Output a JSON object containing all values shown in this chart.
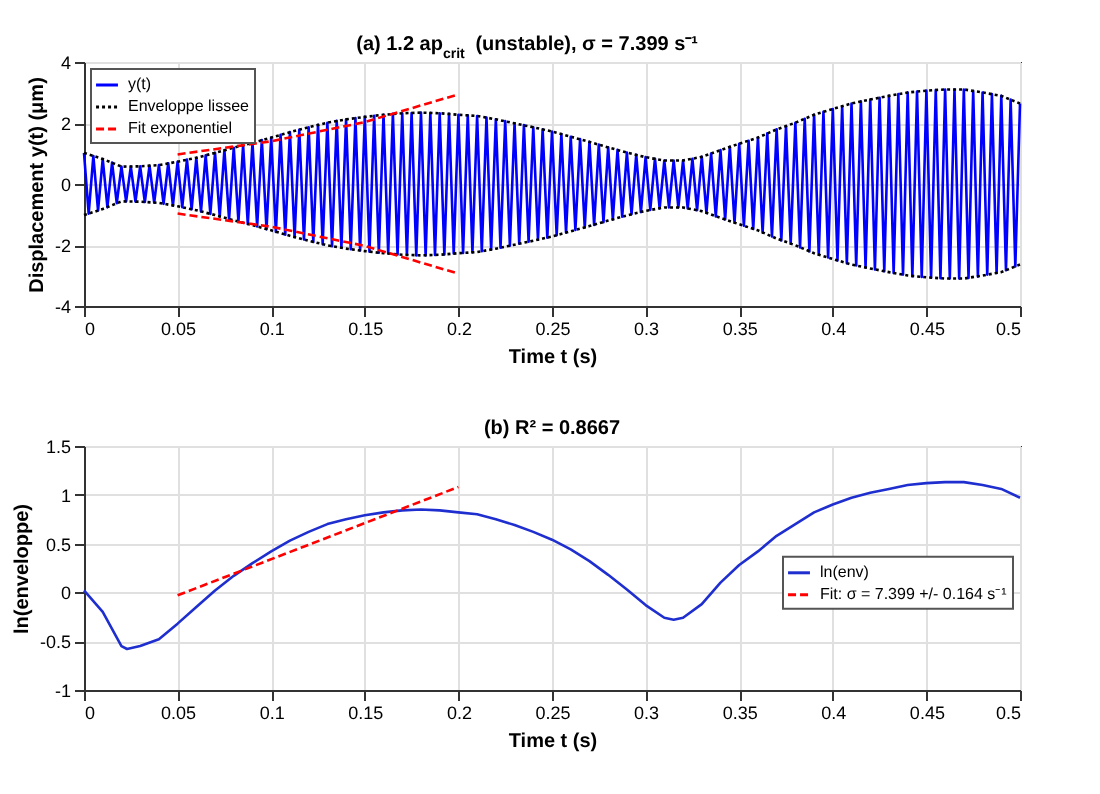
{
  "chart_data": [
    {
      "type": "line",
      "title": "(a) 1.2 ap$_{crit}$ (unstable), σ = 7.399 s⁻¹",
      "xlabel": "Time t (s)",
      "ylabel": "Displacement y(t) (μm)",
      "xlim": [
        0,
        0.5
      ],
      "xticks": [
        0,
        0.05,
        0.1,
        0.15,
        0.2,
        0.25,
        0.3,
        0.35,
        0.4,
        0.45,
        0.5
      ],
      "ylim": [
        -4,
        4
      ],
      "yticks": [
        -4,
        -2,
        0,
        2,
        4
      ],
      "grid": true,
      "legend": "top left",
      "series": [
        {
          "name": "y(t)",
          "color": "#0000ff",
          "line_style": "solid",
          "x": [
            0,
            0.0025,
            0.005,
            0.0075,
            0.01,
            0.0125,
            0.015,
            0.0175,
            0.02,
            0.0225,
            0.025,
            0.0275,
            0.03,
            0.0325,
            0.035,
            0.0375,
            0.04,
            0.0425,
            0.045,
            0.0475,
            0.05,
            0.0525,
            0.055,
            0.0575,
            0.06,
            0.0625,
            0.065,
            0.0675,
            0.07,
            0.0725,
            0.075,
            0.0775,
            0.08,
            0.0825,
            0.085,
            0.0875,
            0.09,
            0.0925,
            0.095,
            0.0975,
            0.1,
            0.1025,
            0.105,
            0.1075,
            0.11,
            0.1125,
            0.115,
            0.1175,
            0.12,
            0.1225,
            0.125,
            0.1275,
            0.13,
            0.1325,
            0.135,
            0.1375,
            0.14,
            0.1425,
            0.145,
            0.1475,
            0.15,
            0.1525,
            0.155,
            0.1575,
            0.16,
            0.1625,
            0.165,
            0.1675,
            0.17,
            0.1725,
            0.175,
            0.1775,
            0.18,
            0.1825,
            0.185,
            0.1875,
            0.19,
            0.1925,
            0.195,
            0.1975,
            0.2,
            0.2025,
            0.205,
            0.2075,
            0.21,
            0.2125,
            0.215,
            0.2175,
            0.22,
            0.2225,
            0.225,
            0.2275,
            0.23,
            0.2325,
            0.235,
            0.2375,
            0.24,
            0.2425,
            0.245,
            0.2475,
            0.25,
            0.2525,
            0.255,
            0.2575,
            0.26,
            0.2625,
            0.265,
            0.2675,
            0.27,
            0.2725,
            0.275,
            0.2775,
            0.28,
            0.2825,
            0.285,
            0.2875,
            0.29,
            0.2925,
            0.295,
            0.2975,
            0.3,
            0.3025,
            0.305,
            0.3075,
            0.31,
            0.3125,
            0.315,
            0.3175,
            0.32,
            0.3225,
            0.325,
            0.3275,
            0.33,
            0.3325,
            0.335,
            0.3375,
            0.34,
            0.3425,
            0.345,
            0.3475,
            0.35,
            0.3525,
            0.355,
            0.3575,
            0.36,
            0.3625,
            0.365,
            0.3675,
            0.37,
            0.3725,
            0.375,
            0.3775,
            0.38,
            0.3825,
            0.385,
            0.3875,
            0.39,
            0.3925,
            0.395,
            0.3975,
            0.4,
            0.4025,
            0.405,
            0.4075,
            0.41,
            0.4125,
            0.415,
            0.4175,
            0.42,
            0.4225,
            0.425,
            0.4275,
            0.43,
            0.4325,
            0.435,
            0.4375,
            0.44,
            0.4425,
            0.445,
            0.4475,
            0.45,
            0.4525,
            0.455,
            0.4575,
            0.46,
            0.4625,
            0.465,
            0.4675,
            0.47,
            0.4725,
            0.475,
            0.4775,
            0.48,
            0.4825,
            0.485,
            0.4875,
            0.49,
            0.4925,
            0.495,
            0.4975,
            0.5
          ],
          "values": [
            1.02,
            -0.97,
            0.92,
            -0.87,
            0.82,
            -0.76,
            0.7,
            -0.63,
            0.57,
            -0.57,
            0.57,
            -0.58,
            0.58,
            -0.59,
            0.6,
            -0.61,
            0.62,
            -0.65,
            0.68,
            -0.7,
            0.73,
            -0.76,
            0.8,
            -0.83,
            0.86,
            -0.9,
            0.94,
            -0.98,
            1.02,
            -1.06,
            1.11,
            -1.15,
            1.19,
            -1.23,
            1.27,
            -1.31,
            1.35,
            -1.39,
            1.44,
            -1.48,
            1.52,
            -1.57,
            1.61,
            -1.66,
            1.7,
            -1.74,
            1.78,
            -1.82,
            1.86,
            -1.9,
            1.94,
            -1.97,
            2.01,
            -2.04,
            2.07,
            -2.09,
            2.12,
            -2.14,
            2.16,
            -2.18,
            2.2,
            -2.22,
            2.24,
            -2.25,
            2.27,
            -2.28,
            2.3,
            -2.31,
            2.32,
            -2.33,
            2.33,
            -2.34,
            2.34,
            -2.34,
            2.33,
            -2.33,
            2.32,
            -2.31,
            2.3,
            -2.28,
            2.27,
            -2.26,
            2.25,
            -2.24,
            2.23,
            -2.2,
            2.18,
            -2.15,
            2.12,
            -2.09,
            2.06,
            -2.02,
            1.99,
            -1.96,
            1.93,
            -1.89,
            1.86,
            -1.83,
            1.79,
            -1.76,
            1.72,
            -1.68,
            1.64,
            -1.59,
            1.55,
            -1.51,
            1.47,
            -1.42,
            1.38,
            -1.34,
            1.29,
            -1.25,
            1.2,
            -1.16,
            1.12,
            -1.07,
            1.03,
            -0.99,
            0.96,
            -0.92,
            0.88,
            -0.85,
            0.83,
            -0.8,
            0.77,
            -0.77,
            0.77,
            -0.77,
            0.77,
            -0.8,
            0.83,
            -0.86,
            0.89,
            -0.95,
            1.0,
            -1.06,
            1.11,
            -1.16,
            1.22,
            -1.27,
            1.32,
            -1.37,
            1.42,
            -1.47,
            1.52,
            -1.59,
            1.66,
            -1.72,
            1.79,
            -1.85,
            1.9,
            -1.96,
            2.01,
            -2.08,
            2.14,
            -2.21,
            2.27,
            -2.32,
            2.37,
            -2.41,
            2.46,
            -2.51,
            2.55,
            -2.6,
            2.64,
            -2.67,
            2.71,
            -2.74,
            2.77,
            -2.8,
            2.83,
            -2.86,
            2.89,
            -2.92,
            2.95,
            -2.97,
            3.0,
            -3.02,
            3.03,
            -3.05,
            3.06,
            -3.07,
            3.08,
            -3.09,
            3.1,
            -3.1,
            3.1,
            -3.1,
            3.1,
            -3.08,
            3.05,
            -3.03,
            3.0,
            -2.97,
            2.95,
            -2.92,
            2.89,
            -2.83,
            2.77,
            -2.7,
            2.64
          ]
        },
        {
          "name": "Enveloppe lissee",
          "color": "#000000",
          "line_style": "dotted",
          "x": [
            0,
            0.01,
            0.02,
            0.03,
            0.04,
            0.05,
            0.06,
            0.07,
            0.08,
            0.09,
            0.1,
            0.11,
            0.12,
            0.13,
            0.14,
            0.15,
            0.16,
            0.17,
            0.18,
            0.19,
            0.2,
            0.21,
            0.22,
            0.23,
            0.24,
            0.25,
            0.26,
            0.27,
            0.28,
            0.29,
            0.3,
            0.31,
            0.32,
            0.33,
            0.34,
            0.35,
            0.36,
            0.37,
            0.38,
            0.39,
            0.4,
            0.41,
            0.42,
            0.43,
            0.44,
            0.45,
            0.46,
            0.47,
            0.48,
            0.49,
            0.5
          ],
          "values": [
            1.02,
            0.82,
            0.57,
            0.58,
            0.62,
            0.73,
            0.86,
            1.02,
            1.19,
            1.35,
            1.52,
            1.7,
            1.86,
            2.01,
            2.12,
            2.2,
            2.27,
            2.32,
            2.34,
            2.32,
            2.27,
            2.23,
            2.12,
            1.99,
            1.86,
            1.72,
            1.55,
            1.38,
            1.2,
            1.03,
            0.88,
            0.77,
            0.77,
            0.89,
            1.11,
            1.32,
            1.52,
            1.79,
            2.01,
            2.27,
            2.46,
            2.64,
            2.77,
            2.89,
            3.0,
            3.06,
            3.1,
            3.1,
            3.0,
            2.89,
            2.64
          ]
        },
        {
          "color": "#000000",
          "line_style": "dotted",
          "x": [
            0,
            0.01,
            0.02,
            0.03,
            0.04,
            0.05,
            0.06,
            0.07,
            0.08,
            0.09,
            0.1,
            0.11,
            0.12,
            0.13,
            0.14,
            0.15,
            0.16,
            0.17,
            0.18,
            0.19,
            0.2,
            0.21,
            0.22,
            0.23,
            0.24,
            0.25,
            0.26,
            0.27,
            0.28,
            0.29,
            0.3,
            0.31,
            0.32,
            0.33,
            0.34,
            0.35,
            0.36,
            0.37,
            0.38,
            0.39,
            0.4,
            0.41,
            0.42,
            0.43,
            0.44,
            0.45,
            0.46,
            0.47,
            0.48,
            0.49,
            0.5
          ],
          "values": [
            -1.02,
            -0.82,
            -0.57,
            -0.58,
            -0.62,
            -0.73,
            -0.86,
            -1.02,
            -1.19,
            -1.35,
            -1.52,
            -1.7,
            -1.86,
            -2.01,
            -2.12,
            -2.2,
            -2.27,
            -2.32,
            -2.34,
            -2.32,
            -2.27,
            -2.23,
            -2.12,
            -1.99,
            -1.86,
            -1.72,
            -1.55,
            -1.38,
            -1.2,
            -1.03,
            -0.88,
            -0.77,
            -0.77,
            -0.89,
            -1.11,
            -1.32,
            -1.52,
            -1.79,
            -2.01,
            -2.27,
            -2.46,
            -2.64,
            -2.77,
            -2.89,
            -3.0,
            -3.06,
            -3.1,
            -3.1,
            -3.0,
            -2.89,
            -2.64
          ]
        },
        {
          "name": "Fit exponentiel",
          "color": "#ff0000",
          "line_style": "dashed",
          "x": [
            0.05,
            0.1,
            0.15,
            0.2
          ],
          "values": [
            0.97,
            1.4,
            2.03,
            2.94
          ]
        },
        {
          "color": "#ff0000",
          "line_style": "dashed",
          "x": [
            0.05,
            0.1,
            0.15,
            0.2
          ],
          "values": [
            -0.97,
            -1.4,
            -2.03,
            -2.94
          ]
        }
      ]
    },
    {
      "type": "line",
      "title": "(b) R² = 0.8667",
      "xlabel": "Time t (s)",
      "ylabel": "ln(enveloppe)",
      "xlim": [
        0,
        0.5
      ],
      "xticks": [
        0,
        0.05,
        0.1,
        0.15,
        0.2,
        0.25,
        0.3,
        0.35,
        0.4,
        0.45,
        0.5
      ],
      "ylim": [
        -1,
        1.5
      ],
      "yticks": [
        -1,
        -0.5,
        0,
        0.5,
        1,
        1.5
      ],
      "grid": true,
      "legend": "right",
      "series": [
        {
          "name": "ln(env)",
          "color": "#1f2fcf",
          "line_style": "solid",
          "x": [
            0,
            0.01,
            0.02,
            0.023,
            0.03,
            0.04,
            0.05,
            0.06,
            0.07,
            0.08,
            0.09,
            0.1,
            0.11,
            0.12,
            0.13,
            0.14,
            0.15,
            0.16,
            0.17,
            0.18,
            0.19,
            0.2,
            0.21,
            0.22,
            0.23,
            0.24,
            0.25,
            0.26,
            0.27,
            0.28,
            0.29,
            0.3,
            0.31,
            0.315,
            0.32,
            0.33,
            0.34,
            0.35,
            0.36,
            0.37,
            0.38,
            0.39,
            0.4,
            0.41,
            0.42,
            0.43,
            0.44,
            0.45,
            0.46,
            0.47,
            0.48,
            0.49,
            0.5
          ],
          "values": [
            0.02,
            -0.2,
            -0.55,
            -0.58,
            -0.55,
            -0.48,
            -0.32,
            -0.15,
            0.02,
            0.17,
            0.3,
            0.42,
            0.53,
            0.62,
            0.7,
            0.75,
            0.79,
            0.82,
            0.84,
            0.85,
            0.84,
            0.82,
            0.8,
            0.75,
            0.69,
            0.62,
            0.54,
            0.44,
            0.32,
            0.18,
            0.03,
            -0.13,
            -0.26,
            -0.28,
            -0.26,
            -0.12,
            0.1,
            0.28,
            0.42,
            0.58,
            0.7,
            0.82,
            0.9,
            0.97,
            1.02,
            1.06,
            1.1,
            1.12,
            1.13,
            1.13,
            1.1,
            1.06,
            0.97
          ]
        },
        {
          "name": "Fit: σ = 7.399 +/- 0.164 s⁻¹",
          "color": "#ff0000",
          "line_style": "dashed",
          "x": [
            0.05,
            0.2
          ],
          "values": [
            -0.03,
            1.08
          ]
        }
      ]
    }
  ]
}
